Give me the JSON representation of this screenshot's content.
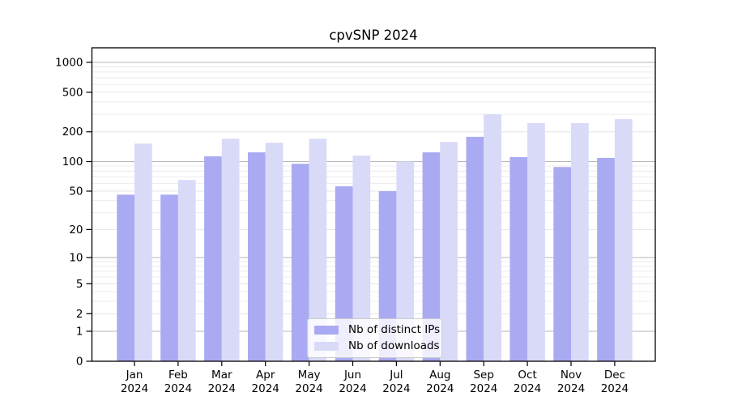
{
  "title": "cpvSNP 2024",
  "chart_data": {
    "type": "bar",
    "title": "cpvSNP 2024",
    "scale": "log10(value+1)",
    "categories": [
      "Jan",
      "Feb",
      "Mar",
      "Apr",
      "May",
      "Jun",
      "Jul",
      "Aug",
      "Sep",
      "Oct",
      "Nov",
      "Dec"
    ],
    "year_label": "2024",
    "series": [
      {
        "name": "Nb of distinct IPs",
        "color": "#aaaaf2",
        "values": [
          46,
          46,
          113,
          124,
          95,
          56,
          50,
          124,
          178,
          111,
          88,
          109
        ]
      },
      {
        "name": "Nb of downloads",
        "color": "#d9d9f8",
        "values": [
          152,
          65,
          170,
          155,
          170,
          115,
          100,
          158,
          300,
          245,
          245,
          268
        ]
      }
    ],
    "yticks": [
      0,
      1,
      2,
      5,
      10,
      20,
      50,
      100,
      200,
      500,
      1000
    ],
    "ylim": [
      0,
      1400
    ],
    "xlabel": "",
    "ylabel": "",
    "grid": true,
    "legend_position": "bottom-center"
  },
  "colors": {
    "grid_major": "#b6b6b6",
    "grid_minor": "#ececec",
    "grid_labeled": "#e4e4e4",
    "spine": "#000000",
    "tick_label": "#000000"
  }
}
